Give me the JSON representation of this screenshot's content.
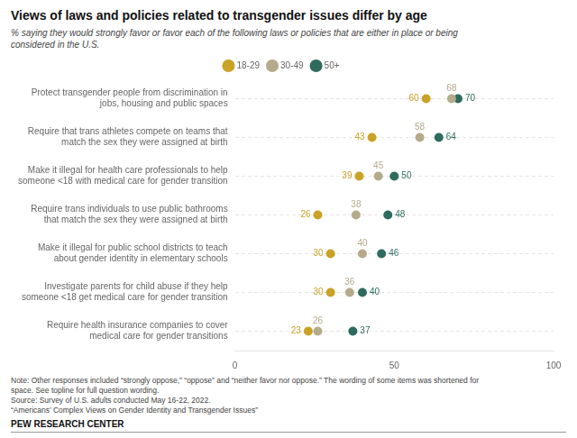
{
  "chart_data": {
    "type": "dot",
    "title": "Views of laws and policies related to transgender issues differ by age",
    "subtitle": "% saying they would strongly favor or favor each of the following laws or policies that are either in place or being\nconsidered in the U.S.",
    "categories": [
      "Protect transgender people from discrimination in\njobs, housing and public spaces",
      "Require that trans athletes compete on teams that\nmatch the sex they were assigned at birth",
      "Make it illegal for health care professionals to help\nsomeone <18 with medical care for gender transition",
      "Require trans individuals to use public bathrooms\nthat match the sex they were assigned at birth",
      "Make it illegal for public school districts to teach\nabout gender identity in elementary schools",
      "Investigate parents for child abuse if they help\nsomeone <18 get medical care for gender transition",
      "Require health insurance companies to cover\nmedical care for gender transitions"
    ],
    "series": [
      {
        "name": "18-29",
        "color": "#C9A227",
        "values": [
          60,
          43,
          39,
          26,
          30,
          30,
          23
        ]
      },
      {
        "name": "30-49",
        "color": "#B5AA8A",
        "values": [
          68,
          58,
          45,
          38,
          40,
          36,
          26
        ]
      },
      {
        "name": "50+",
        "color": "#2E6B5E",
        "values": [
          70,
          64,
          50,
          48,
          46,
          40,
          37
        ]
      }
    ],
    "xlim": [
      0,
      100
    ],
    "xticks": [
      0,
      50,
      100
    ],
    "grid": true,
    "legend": "top",
    "orientation": "horizontal",
    "data_labels": true,
    "marker": "circle",
    "notes": [
      "Note: Other responses included “strongly oppose,” “oppose” and “neither favor nor oppose.” The wording of some items was shortened for",
      "space. See topline for full question wording.",
      "Source: Survey of U.S. adults conducted May 16-22, 2022.",
      "“Americans’ Complex Views on Gender Identity and Transgender Issues”"
    ],
    "footer": "PEW RESEARCH CENTER"
  }
}
